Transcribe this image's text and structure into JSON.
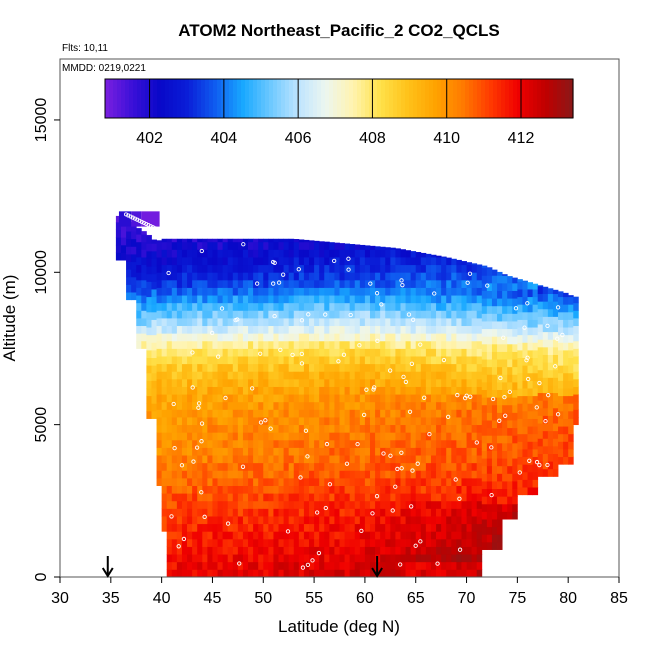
{
  "chart_data": {
    "type": "heatmap",
    "title": "ATOM2 Northeast_Pacific_2 CO2_QCLS",
    "flights_text": "Flts: 10,11",
    "mmdd_text": "MMDD: 0219,0221",
    "xlabel": "Latitude (deg N)",
    "ylabel": "Altitude (m)",
    "xlim": [
      30,
      85
    ],
    "ylim": [
      0,
      17000
    ],
    "x_ticks": [
      30,
      35,
      40,
      45,
      50,
      55,
      60,
      65,
      70,
      75,
      80,
      85
    ],
    "y_ticks": [
      0,
      5000,
      10000,
      15000
    ],
    "colorbar": {
      "range": [
        400.8,
        413.4
      ],
      "ticks": [
        402,
        404,
        406,
        408,
        410,
        412
      ],
      "colors": [
        "#7b1fe0",
        "#3a10d8",
        "#0808c8",
        "#0a1ed8",
        "#0f5cf0",
        "#18a8ff",
        "#6cc8ff",
        "#bde4ff",
        "#ecf6f0",
        "#fff4b0",
        "#ffe14a",
        "#ffc21a",
        "#ffa300",
        "#ff7a00",
        "#ff3a00",
        "#f00000",
        "#c00000",
        "#8a1818"
      ]
    },
    "arrow_latitudes": [
      34.7,
      61.2
    ],
    "columns": [
      {
        "lat": [
          35.8,
          37.0
        ],
        "alt": [
          11500,
          12000
        ],
        "value": 401.8
      },
      {
        "lat": [
          37.0,
          38.0
        ],
        "alt": [
          11500,
          12000
        ],
        "value": 401.3
      },
      {
        "lat": [
          38.0,
          39.8
        ],
        "alt": [
          11500,
          12000
        ],
        "value": 400.9
      }
    ],
    "profile": [
      {
        "alt": 11750,
        "value": 402.0
      },
      {
        "alt": 10750,
        "value": 402.4
      },
      {
        "alt": 9750,
        "value": 403.4
      },
      {
        "alt": 9000,
        "value": 404.8
      },
      {
        "alt": 8250,
        "value": 406.2
      },
      {
        "alt": 7500,
        "value": 408.2
      },
      {
        "alt": 6750,
        "value": 409.2
      },
      {
        "alt": 6000,
        "value": 409.8
      },
      {
        "alt": 5250,
        "value": 410.2
      },
      {
        "alt": 4500,
        "value": 410.4
      },
      {
        "alt": 3750,
        "value": 410.6
      },
      {
        "alt": 3000,
        "value": 411.0
      },
      {
        "alt": 2250,
        "value": 411.4
      },
      {
        "alt": 1500,
        "value": 411.7
      },
      {
        "alt": 750,
        "value": 412.0
      },
      {
        "alt": 250,
        "value": 412.2
      }
    ]
  }
}
